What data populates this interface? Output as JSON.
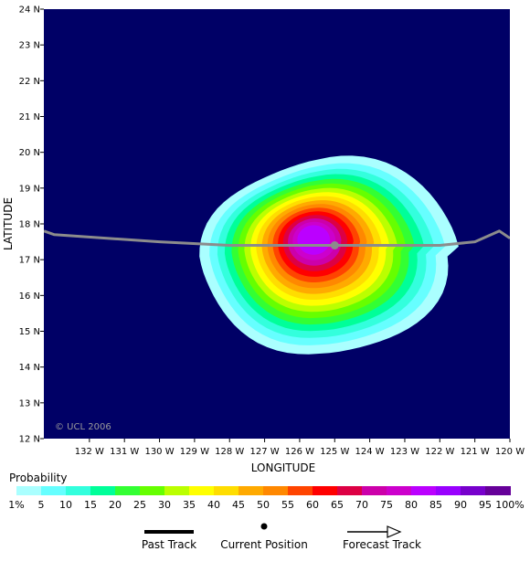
{
  "chart_data": {
    "type": "heatmap",
    "title": "",
    "xlabel": "LONGITUDE",
    "ylabel": "LATITUDE",
    "xlim": [
      133.3,
      120.0
    ],
    "ylim": [
      12,
      24
    ],
    "x_ticks": [
      "132 W",
      "131 W",
      "130 W",
      "129 W",
      "128 W",
      "127 W",
      "126 W",
      "125 W",
      "124 W",
      "123 W",
      "122 W",
      "121 W",
      "120 W"
    ],
    "y_ticks": [
      "12 N",
      "13 N",
      "14 N",
      "15 N",
      "16 N",
      "17 N",
      "18 N",
      "19 N",
      "20 N",
      "21 N",
      "22 N",
      "23 N",
      "24 N"
    ],
    "background_color": "#000066",
    "copyright": "© UCL 2006",
    "probability_contours": [
      {
        "level": "1%",
        "color": "#aaffff"
      },
      {
        "level": "5",
        "color": "#66ffff"
      },
      {
        "level": "10",
        "color": "#33ffdd"
      },
      {
        "level": "15",
        "color": "#00ff99"
      },
      {
        "level": "20",
        "color": "#33ff33"
      },
      {
        "level": "25",
        "color": "#66ff00"
      },
      {
        "level": "30",
        "color": "#bbff00"
      },
      {
        "level": "35",
        "color": "#ffff00"
      },
      {
        "level": "40",
        "color": "#ffdd00"
      },
      {
        "level": "45",
        "color": "#ffaa00"
      },
      {
        "level": "50",
        "color": "#ff8800"
      },
      {
        "level": "55",
        "color": "#ff4400"
      },
      {
        "level": "60",
        "color": "#ff0000"
      },
      {
        "level": "65",
        "color": "#dd0044"
      },
      {
        "level": "70",
        "color": "#cc00aa"
      },
      {
        "level": "75",
        "color": "#cc00cc"
      },
      {
        "level": "80",
        "color": "#bb00ff"
      },
      {
        "level": "85",
        "color": "#9900ff"
      },
      {
        "level": "90",
        "color": "#7700cc"
      },
      {
        "level": "95",
        "color": "#660099"
      },
      {
        "level": "100%",
        "color": "#550066"
      }
    ],
    "storm_field": {
      "center_lon": 125.6,
      "center_lat": 17.55,
      "peak_probability": 80
    },
    "track": [
      {
        "lon": 133.3,
        "lat": 17.8
      },
      {
        "lon": 133.0,
        "lat": 17.7
      },
      {
        "lon": 130.0,
        "lat": 17.5
      },
      {
        "lon": 128.0,
        "lat": 17.4
      },
      {
        "lon": 126.0,
        "lat": 17.4
      },
      {
        "lon": 125.0,
        "lat": 17.4
      },
      {
        "lon": 123.0,
        "lat": 17.4
      },
      {
        "lon": 122.0,
        "lat": 17.4
      },
      {
        "lon": 121.0,
        "lat": 17.5
      },
      {
        "lon": 120.3,
        "lat": 17.8
      },
      {
        "lon": 120.0,
        "lat": 17.6
      }
    ],
    "current_position": {
      "lon": 125.0,
      "lat": 17.4
    }
  },
  "legend": {
    "title": "Probability",
    "past_track": "Past Track",
    "current_position": "Current Position",
    "forecast_track": "Forecast Track"
  }
}
